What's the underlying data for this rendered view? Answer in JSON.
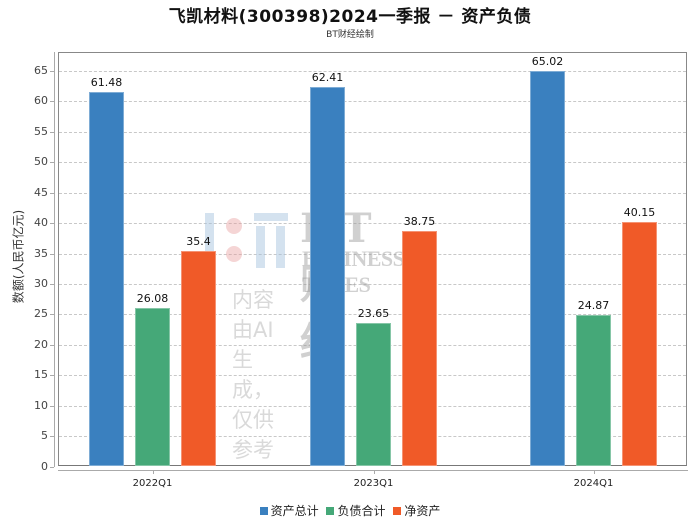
{
  "header": {
    "title": "飞凯材料(300398)2024一季报 － 资产负债",
    "subtitle": "BT财经绘制"
  },
  "watermark": {
    "brand": "BT财经",
    "brand_en": "BUSINESS TIMES",
    "note": "内容由AI生成，仅供参考"
  },
  "chart_data": {
    "type": "bar",
    "title": "飞凯材料(300398)2024一季报 － 资产负债",
    "subtitle": "BT财经绘制",
    "xlabel": "",
    "ylabel": "数额(人民币亿元)",
    "categories": [
      "2022Q1",
      "2023Q1",
      "2024Q1"
    ],
    "series": [
      {
        "name": "资产总计",
        "color": "#3a80bf",
        "values": [
          61.48,
          62.41,
          65.02
        ]
      },
      {
        "name": "负债合计",
        "color": "#45a878",
        "values": [
          26.08,
          23.65,
          24.87
        ]
      },
      {
        "name": "净资产",
        "color": "#f05a28",
        "values": [
          35.4,
          38.75,
          40.15
        ]
      }
    ],
    "value_labels": [
      [
        "61.48",
        "62.41",
        "65.02"
      ],
      [
        "26.08",
        "23.65",
        "24.87"
      ],
      [
        "35.4",
        "38.75",
        "40.15"
      ]
    ],
    "ylim": [
      0,
      65
    ],
    "yticks": [
      "0",
      "5",
      "10",
      "15",
      "20",
      "25",
      "30",
      "35",
      "40",
      "45",
      "50",
      "55",
      "60",
      "65"
    ],
    "grid": true,
    "legend_position": "bottom"
  }
}
